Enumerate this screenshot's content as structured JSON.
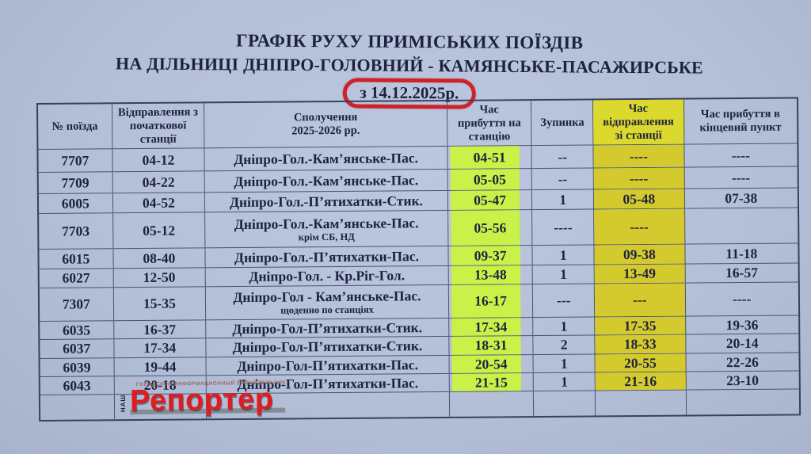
{
  "page": {
    "title_line1": "ГРАФІК РУХУ ПРИМІСЬКИХ ПОЇЗДІВ",
    "title_line2": "НА ДІЛЬНИЦІ ДНІПРО-ГОЛОВНИЙ - КАМЯНСЬКЕ-ПАСАЖИРСЬКЕ",
    "effective_date": "з 14.12.2025р."
  },
  "table": {
    "headers": [
      "№ поїзда",
      "Відправлення з\nпочаткової\nстанції",
      "Сполучення\n2025-2026 рр.",
      "Час\nприбуття на\nстанцію",
      "Зупинка",
      "Час\nвідправлення\nзі станції",
      "Час прибуття в\nкінцевий пункт"
    ],
    "rows": [
      {
        "train": "7707",
        "departure": "04-12",
        "route": "Дніпро-Гол.-Кам’янське-Пас.",
        "note": "",
        "arrival": "04-51",
        "stop": "--",
        "departure2": "----",
        "final": "----"
      },
      {
        "train": "7709",
        "departure": "04-22",
        "route": "Дніпро-Гол.-Кам’янське-Пас.",
        "note": "",
        "arrival": "05-05",
        "stop": "--",
        "departure2": "----",
        "final": "----"
      },
      {
        "train": "6005",
        "departure": "04-52",
        "route": "Дніпро-Гол.-П’ятихатки-Стик.",
        "note": "",
        "arrival": "05-47",
        "stop": "1",
        "departure2": "05-48",
        "final": "07-38"
      },
      {
        "train": "7703",
        "departure": "05-12",
        "route": "Дніпро-Гол.-Кам’янське-Пас.",
        "note": "крім СБ, НД",
        "arrival": "05-56",
        "stop": "----",
        "departure2": "----",
        "final": ""
      },
      {
        "train": "6015",
        "departure": "08-40",
        "route": "Дніпро-Гол.-П’ятихатки-Пас.",
        "note": "",
        "arrival": "09-37",
        "stop": "1",
        "departure2": "09-38",
        "final": "11-18"
      },
      {
        "train": "6027",
        "departure": "12-50",
        "route": "Дніпро-Гол. - Кр.Ріг-Гол.",
        "note": "",
        "arrival": "13-48",
        "stop": "1",
        "departure2": "13-49",
        "final": "16-57"
      },
      {
        "train": "7307",
        "departure": "15-35",
        "route": "Дніпро-Гол - Кам’янське-Пас.",
        "note": "щоденно по станціях",
        "arrival": "16-17",
        "stop": "---",
        "departure2": "---",
        "final": "----"
      },
      {
        "train": "6035",
        "departure": "16-37",
        "route": "Дніпро-Гол-П’ятихатки-Стик.",
        "note": "",
        "arrival": "17-34",
        "stop": "1",
        "departure2": "17-35",
        "final": "19-36"
      },
      {
        "train": "6037",
        "departure": "17-34",
        "route": "Дніпро-Гол-П’ятихатки-Стик.",
        "note": "",
        "arrival": "18-31",
        "stop": "2",
        "departure2": "18-33",
        "final": "20-14"
      },
      {
        "train": "6039",
        "departure": "19-44",
        "route": "Дніпро-Гол-П’ятихатки-Пас.",
        "note": "",
        "arrival": "20-54",
        "stop": "1",
        "departure2": "20-55",
        "final": "22-26"
      },
      {
        "train": "6043",
        "departure": "20-18",
        "route": "Дніпро-Гол-П’ятихатки-Пас.",
        "note": "",
        "arrival": "21-15",
        "stop": "1",
        "departure2": "21-16",
        "final": "23-10"
      }
    ]
  },
  "logo": {
    "vertical_text": "НАШ",
    "tagline": "ГОРОДСКОЙ ИНФОРМАЦИОННЫЙ ЕЖЕНЕДЕЛЬНИК",
    "name": "Репортер"
  },
  "colors": {
    "hl-green": "#c9f148",
    "hl-yellow": "#d5ca2d",
    "hl-yellow-h": "#dcd92e",
    "circle-red": "#cf2128",
    "logo-red": "#e11b1f"
  }
}
